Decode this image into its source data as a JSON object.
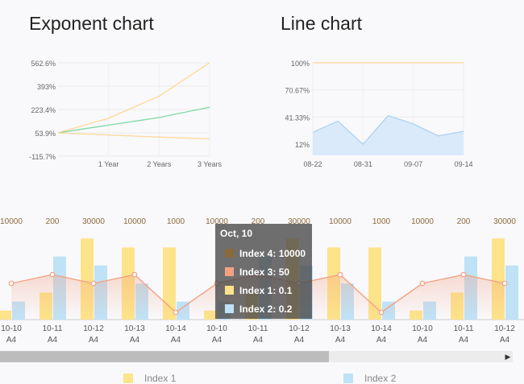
{
  "titles": {
    "exponent": "Exponent chart",
    "line": "Line chart"
  },
  "exponent_chart": {
    "y_ticks": [
      "562.6%",
      "393%",
      "223.4%",
      "53.9%",
      "-115.7%"
    ],
    "x_ticks": [
      "1 Year",
      "2 Years",
      "3 Years"
    ]
  },
  "line_chart": {
    "y_ticks": [
      "100%",
      "70.67%",
      "41.33%",
      "12%"
    ],
    "x_ticks": [
      "08-22",
      "08-31",
      "09-07",
      "09-14"
    ]
  },
  "tooltip": {
    "date": "Oct, 10",
    "rows": [
      {
        "label": "Index 4:",
        "value": "10000",
        "color": "#8a6a3a"
      },
      {
        "label": "Index 3:",
        "value": "50",
        "color": "#f3a183"
      },
      {
        "label": "Index 1:",
        "value": "0.1",
        "color": "#fde38a"
      },
      {
        "label": "Index 2:",
        "value": "0.2",
        "color": "#bfe2f7"
      }
    ]
  },
  "legend": [
    {
      "label": "Index 1",
      "color": "#fde38a"
    },
    {
      "label": "Index 2",
      "color": "#bfe2f7"
    }
  ],
  "chart_data": [
    {
      "type": "line",
      "title": "Exponent chart",
      "x": [
        "0",
        "1 Year",
        "2 Years",
        "3 Years"
      ],
      "ylim": [
        -115.7,
        562.6
      ],
      "series": [
        {
          "values": [
            53.9,
            160,
            320,
            562.6
          ],
          "color": "#ffd79a"
        },
        {
          "values": [
            53.9,
            110,
            165,
            240
          ],
          "color": "#7dd9a6"
        },
        {
          "values": [
            53.9,
            38,
            23,
            10
          ],
          "color": "#ffd79a"
        }
      ]
    },
    {
      "type": "area",
      "title": "Line chart",
      "x": [
        "08-22",
        "08-26",
        "08-29",
        "09-03",
        "09-07",
        "09-11",
        "09-14"
      ],
      "ylim": [
        0,
        100
      ],
      "series": [
        {
          "values": [
            100,
            100,
            100,
            100,
            100,
            100,
            100
          ],
          "color": "#ffd79a"
        },
        {
          "values": [
            25,
            37,
            12,
            43,
            34,
            21,
            26
          ],
          "color": "#bfe2f7"
        }
      ]
    },
    {
      "type": "bar",
      "categories": [
        "10-10",
        "10-11",
        "10-12",
        "10-13",
        "10-14",
        "10-10",
        "10-11",
        "10-12",
        "10-13",
        "10-14",
        "10-10",
        "10-11",
        "10-12"
      ],
      "sublabel": "A4",
      "top_labels": [
        "10000",
        "200",
        "30000",
        "10000",
        "1000",
        "10000",
        "200",
        "30000",
        "10000",
        "1000",
        "10000",
        "200",
        "30000"
      ],
      "series": [
        {
          "name": "Index 1",
          "values": [
            0.1,
            0.3,
            0.9,
            0.8,
            0.8,
            0.1,
            0.3,
            0.9,
            0.8,
            0.8,
            0.1,
            0.3,
            0.9
          ],
          "color": "#fde38a"
        },
        {
          "name": "Index 2",
          "values": [
            0.2,
            0.7,
            0.6,
            0.4,
            0.2,
            0.2,
            0.7,
            0.6,
            0.4,
            0.2,
            0.2,
            0.7,
            0.6
          ],
          "color": "#bfe2f7"
        },
        {
          "name": "Index 3",
          "values": [
            50,
            62,
            50,
            62,
            10,
            50,
            62,
            50,
            62,
            10,
            50,
            62,
            50
          ],
          "color": "#f3a183"
        }
      ]
    }
  ]
}
